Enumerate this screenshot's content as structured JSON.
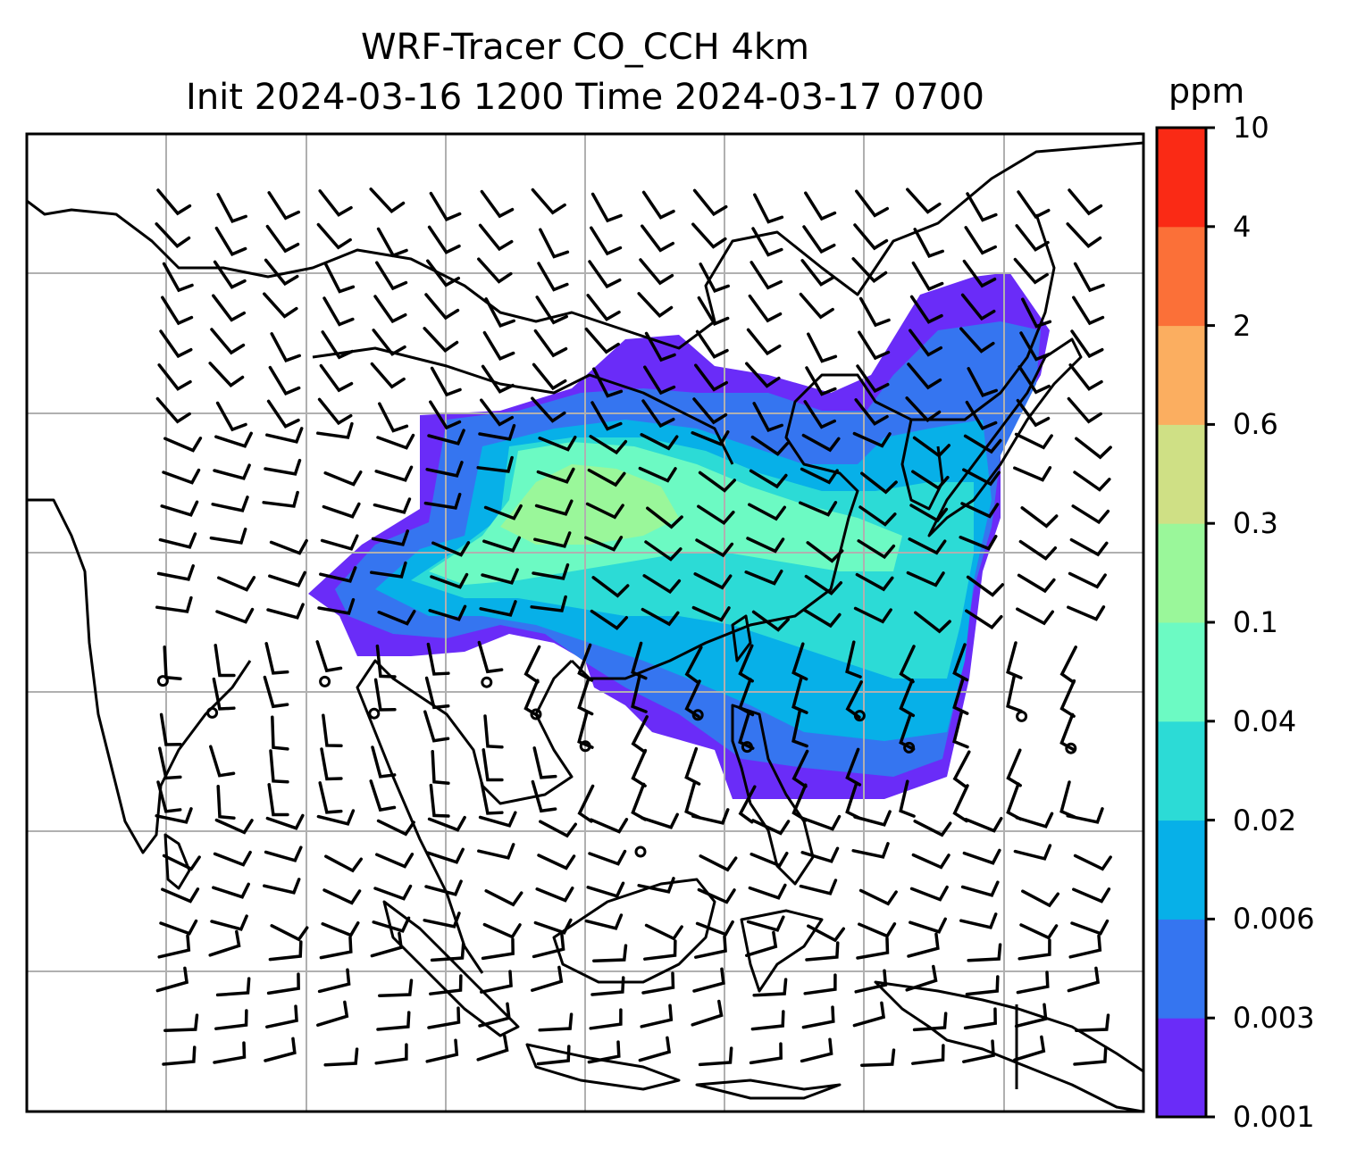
{
  "title": {
    "line1": "WRF-Tracer CO_CCH 4km",
    "line2": "Init 2024-03-16 1200 Time 2024-03-17 0700"
  },
  "colorbar": {
    "unit": "ppm",
    "levels": [
      "0.001",
      "0.003",
      "0.006",
      "0.02",
      "0.04",
      "0.1",
      "0.3",
      "0.6",
      "2",
      "4",
      "10"
    ],
    "colors": [
      "#6a2cf8",
      "#3575f0",
      "#07b0e8",
      "#2cdbd6",
      "#6cfac3",
      "#9af79a",
      "#cfe085",
      "#fbae60",
      "#fb7038",
      "#fa2a15"
    ]
  },
  "map": {
    "field": "CO_CCH tracer concentration with wind barbs",
    "land_outline_color": "#000000",
    "gridline_color": "#b0b0b0"
  }
}
